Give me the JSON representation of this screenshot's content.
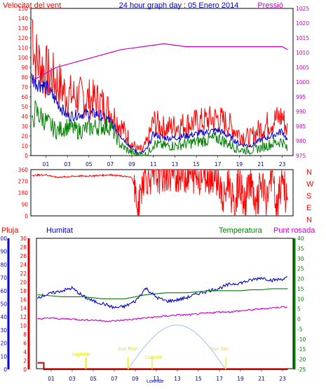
{
  "header": {
    "wind_label": "Velocitat del vent",
    "title": "24 hour graph day : 05 Enero 2014",
    "pressure_label": "Pressió"
  },
  "bottom_header": {
    "rain_label": "Pluja",
    "humidity_label": "Humitat",
    "temperature_label": "Temperatura",
    "dewpoint_label": "Punt rosada"
  },
  "compass": [
    "N",
    "W",
    "S",
    "E",
    "N"
  ],
  "colors": {
    "wind_gust": "#ff0000",
    "wind_avg": "#0000cc",
    "wind_low": "#008000",
    "pressure": "#cc00cc",
    "direction": "#ff0000",
    "humidity": "#0000cc",
    "temperature": "#008000",
    "dewpoint": "#cc00cc",
    "rain": "#cc0000",
    "sun": "#a8c8f0",
    "events": "#e6e600"
  },
  "events": [
    {
      "label": "Highride",
      "hour": 4.3
    },
    {
      "label": "Sun Rise",
      "hour": 8.3
    },
    {
      "label": "Lowride",
      "hour": 10.6
    },
    {
      "label": "Sun Set",
      "hour": 17.6
    },
    {
      "label": "Lowride",
      "hour": 11.2
    }
  ],
  "chart_data": [
    {
      "type": "line",
      "name": "wind",
      "x_ticks": [
        "01",
        "03",
        "05",
        "07",
        "09",
        "11",
        "13",
        "15",
        "17",
        "19",
        "21",
        "23"
      ],
      "x_tick_hours": [
        1,
        3,
        5,
        7,
        9,
        11,
        13,
        15,
        17,
        19,
        21,
        23
      ],
      "xlim": [
        -0.4,
        24
      ],
      "ylim": [
        0,
        150
      ],
      "y_ticks": [
        0,
        10,
        20,
        30,
        40,
        50,
        60,
        70,
        80,
        90,
        100,
        110,
        120,
        130,
        140,
        150
      ],
      "y2lim": [
        975,
        1025
      ],
      "y2_ticks": [
        975,
        980,
        985,
        990,
        995,
        1000,
        1005,
        1010,
        1015,
        1020,
        1025
      ],
      "series": [
        {
          "role": "gust",
          "x": [
            -0.3,
            0,
            1,
            2,
            3,
            4,
            5,
            6,
            7,
            8,
            9,
            9.5,
            10,
            10.5,
            11,
            12,
            13,
            14,
            15,
            16,
            17,
            18,
            19,
            20,
            21,
            22,
            23,
            23.5
          ],
          "y": [
            140,
            100,
            85,
            75,
            62,
            60,
            58,
            55,
            45,
            30,
            12,
            6,
            5,
            15,
            35,
            28,
            30,
            32,
            34,
            36,
            38,
            32,
            22,
            18,
            28,
            35,
            40,
            25
          ]
        },
        {
          "role": "average",
          "x": [
            -0.3,
            0,
            1,
            2,
            3,
            4,
            5,
            6,
            7,
            8,
            9,
            9.5,
            10,
            10.5,
            11,
            12,
            13,
            14,
            15,
            16,
            17,
            18,
            19,
            20,
            21,
            22,
            23,
            23.5
          ],
          "y": [
            80,
            75,
            70,
            55,
            40,
            42,
            43,
            42,
            35,
            20,
            8,
            3,
            3,
            8,
            22,
            18,
            18,
            20,
            22,
            24,
            26,
            20,
            12,
            10,
            16,
            20,
            25,
            15
          ]
        },
        {
          "role": "low",
          "x": [
            -0.3,
            0,
            1,
            2,
            3,
            4,
            5,
            6,
            7,
            8,
            9,
            9.5,
            10,
            10.5,
            11,
            12,
            13,
            14,
            15,
            16,
            17,
            18,
            19,
            20,
            21,
            22,
            23,
            23.5
          ],
          "y": [
            30,
            45,
            35,
            25,
            30,
            25,
            28,
            30,
            30,
            10,
            3,
            1,
            1,
            2,
            12,
            10,
            10,
            12,
            14,
            16,
            18,
            12,
            6,
            5,
            8,
            12,
            15,
            5
          ]
        },
        {
          "role": "pressure",
          "x": [
            -0.3,
            0,
            1,
            2,
            3,
            4,
            5,
            6,
            7,
            8,
            9,
            10,
            11,
            12,
            13,
            14,
            15,
            16,
            17,
            18,
            19,
            20,
            21,
            22,
            23,
            23.5
          ],
          "y": [
            1000,
            1001,
            1003,
            1005,
            1006,
            1007,
            1008,
            1009,
            1010,
            1011,
            1011.5,
            1012,
            1012.5,
            1013,
            1012.5,
            1012,
            1012,
            1012,
            1012,
            1012,
            1012,
            1012,
            1012,
            1012,
            1012,
            1011
          ]
        }
      ]
    },
    {
      "type": "scatter",
      "name": "wind_direction",
      "ylim": [
        0,
        360
      ],
      "y_ticks": [
        0,
        90,
        180,
        270,
        360
      ],
      "x": [
        -0.3,
        1,
        2,
        3,
        4,
        5,
        6,
        7,
        8,
        9,
        9.3,
        9.6,
        10,
        10.5,
        11,
        12,
        13,
        14,
        15,
        16,
        17,
        17.5,
        18,
        18.5,
        19,
        19.5,
        20,
        20.5,
        21,
        21.5,
        22,
        22.5,
        23,
        23.5
      ],
      "y": [
        315,
        320,
        300,
        305,
        310,
        310,
        315,
        320,
        310,
        300,
        200,
        20,
        300,
        310,
        310,
        320,
        330,
        320,
        315,
        320,
        310,
        90,
        290,
        40,
        300,
        60,
        320,
        10,
        260,
        100,
        340,
        20,
        330,
        60
      ]
    },
    {
      "type": "line",
      "name": "weather",
      "ylim_temperature": [
        -25,
        40
      ],
      "y_ticks_temperature": [
        -25,
        -20,
        -15,
        -10,
        -5,
        0,
        5,
        10,
        15,
        20,
        25,
        30,
        35,
        40
      ],
      "ylim_rain": [
        0,
        30
      ],
      "y_ticks_rain": [
        0,
        2,
        4,
        6,
        8,
        10,
        12,
        14,
        16,
        18,
        20,
        22,
        24,
        26,
        28,
        30
      ],
      "ylim_humidity": [
        0,
        100
      ],
      "y_ticks_humidity": [
        0,
        10,
        20,
        30,
        40,
        50,
        60,
        70,
        80,
        90,
        100
      ],
      "series": [
        {
          "role": "humidity",
          "x": [
            -0.3,
            1,
            2,
            3,
            4,
            5,
            6,
            7,
            8,
            9,
            10,
            11,
            12,
            13,
            14,
            15,
            16,
            17,
            18,
            19,
            20,
            21,
            22,
            23,
            23.5
          ],
          "y": [
            55,
            58,
            60,
            62,
            56,
            52,
            50,
            47,
            48,
            52,
            62,
            55,
            52,
            53,
            55,
            58,
            60,
            62,
            65,
            66,
            68,
            70,
            68,
            69,
            70
          ]
        },
        {
          "role": "temperature",
          "x": [
            -0.3,
            1,
            2,
            3,
            4,
            5,
            6,
            7,
            8,
            9,
            10,
            11,
            12,
            13,
            14,
            15,
            16,
            17,
            18,
            19,
            20,
            21,
            22,
            23,
            23.5
          ],
          "y": [
            12,
            11.5,
            11,
            11,
            11,
            10.5,
            10,
            10,
            10,
            11,
            12,
            12.5,
            13,
            13,
            13,
            13.5,
            14,
            14,
            14,
            14,
            14.5,
            14.5,
            15,
            15,
            15
          ]
        },
        {
          "role": "dewpoint",
          "x": [
            -0.3,
            1,
            2,
            3,
            4,
            5,
            6,
            7,
            8,
            9,
            10,
            11,
            12,
            13,
            14,
            15,
            16,
            17,
            18,
            19,
            20,
            21,
            22,
            23,
            23.5
          ],
          "y": [
            0,
            0.5,
            0,
            0,
            -0.5,
            -0.5,
            -1,
            -1,
            -0.5,
            0,
            0.5,
            1,
            1.5,
            2,
            2,
            2.5,
            3,
            3.5,
            3.5,
            4,
            4.5,
            5,
            5.5,
            6,
            6
          ]
        },
        {
          "role": "rain",
          "x": [
            -0.3,
            0.3,
            0.3,
            23.5
          ],
          "y": [
            1.5,
            1.5,
            0,
            0
          ]
        },
        {
          "role": "sun",
          "x": [
            8.3,
            10,
            11.5,
            12.9,
            14.5,
            16,
            17.6
          ],
          "y": [
            0,
            -16,
            -21,
            -22,
            -21,
            -16,
            0
          ]
        }
      ]
    }
  ]
}
